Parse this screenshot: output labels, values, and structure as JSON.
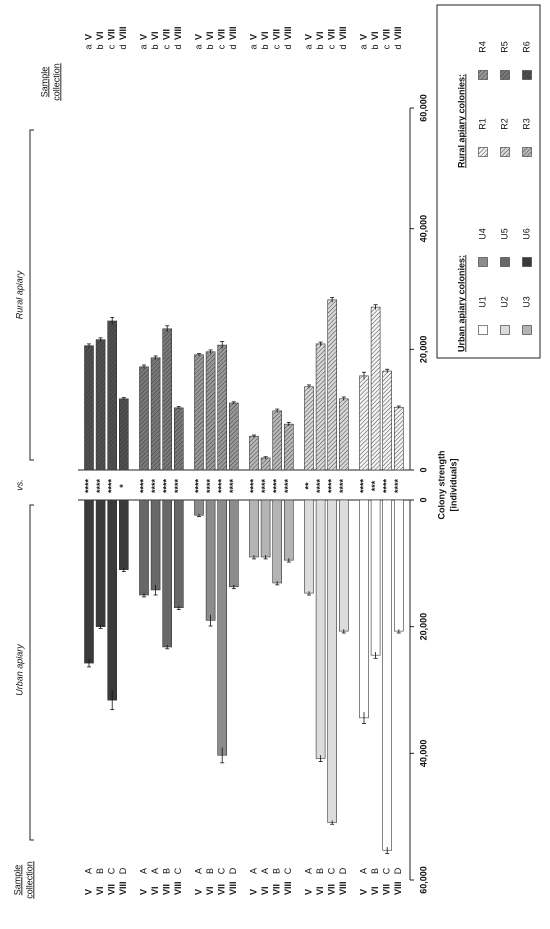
{
  "chart_data": {
    "type": "bar",
    "annotations": {
      "urban": "Urban apiary",
      "rural": "Rural apiary",
      "vs": "vs."
    },
    "sample_header": [
      "Sample",
      "collection"
    ],
    "xlabel": [
      "Colony strength",
      "[individuals]"
    ],
    "legend": {
      "urban_title": "Urban apiary colonies:",
      "rural_title": "Rural apiary colonies:"
    },
    "categories": [
      "V",
      "VI",
      "VII",
      "VIII"
    ],
    "ylim": [
      0,
      60000
    ],
    "yticks": [
      0,
      {
        "value": 20000,
        "label": "20,000"
      },
      {
        "value": 40000,
        "label": "40,000"
      },
      {
        "value": 60000,
        "label": "60,000"
      }
    ],
    "y2lim": [
      0,
      60000
    ],
    "y2ticks": [
      0,
      {
        "value": 20000,
        "label": "20,000"
      },
      {
        "value": 40000,
        "label": "40,000"
      },
      {
        "value": 60000,
        "label": "60,000"
      }
    ],
    "series": [
      {
        "name": "U1",
        "color": "#ffffff",
        "axis": "y",
        "letters": [
          "A",
          "B",
          "C",
          "D"
        ],
        "values": [
          34400,
          24500,
          55300,
          20700
        ],
        "errors": [
          900,
          500,
          500,
          300
        ],
        "significance": [
          "****",
          "***",
          "****",
          "****"
        ]
      },
      {
        "name": "U2",
        "color": "#dcdcdc",
        "axis": "y",
        "letters": [
          "A",
          "B",
          "C",
          "D"
        ],
        "values": [
          14700,
          40800,
          50900,
          20700
        ],
        "errors": [
          300,
          500,
          300,
          300
        ],
        "significance": [
          "**",
          "****",
          "****",
          "****"
        ]
      },
      {
        "name": "U3",
        "color": "#b4b4b4",
        "axis": "y",
        "letters": [
          "A",
          "A",
          "B",
          "C"
        ],
        "values": [
          9000,
          9000,
          13100,
          9500
        ],
        "errors": [
          300,
          300,
          300,
          300
        ],
        "significance": [
          "****",
          "****",
          "****",
          "****"
        ]
      },
      {
        "name": "U4",
        "color": "#8c8c8c",
        "axis": "y",
        "letters": [
          "A",
          "B",
          "C",
          "D"
        ],
        "values": [
          2400,
          19000,
          40300,
          13700
        ],
        "errors": [
          200,
          900,
          1200,
          300
        ],
        "significance": [
          "****",
          "****",
          "****",
          "****"
        ]
      },
      {
        "name": "U5",
        "color": "#686868",
        "axis": "y",
        "letters": [
          "A",
          "A",
          "B",
          "C"
        ],
        "values": [
          15000,
          14200,
          23200,
          17000
        ],
        "errors": [
          300,
          800,
          300,
          300
        ],
        "significance": [
          "****",
          "****",
          "****",
          "****"
        ]
      },
      {
        "name": "U6",
        "color": "#3a3a3a",
        "axis": "y",
        "letters": [
          "A",
          "B",
          "C",
          "D"
        ],
        "values": [
          25750,
          20000,
          31600,
          11000
        ],
        "errors": [
          600,
          300,
          1500,
          300
        ],
        "significance": [
          "****",
          "****",
          "****",
          "*"
        ]
      },
      {
        "name": "R1",
        "color": "#f4f4f4",
        "axis": "y2",
        "hatch": true,
        "letters": [
          "a",
          "b",
          "c",
          "d"
        ],
        "values": [
          15600,
          27000,
          16400,
          10400
        ],
        "errors": [
          600,
          400,
          300,
          200
        ]
      },
      {
        "name": "R2",
        "color": "#d8d8d8",
        "axis": "y2",
        "hatch": true,
        "letters": [
          "a",
          "b",
          "c",
          "d"
        ],
        "values": [
          13800,
          20900,
          28200,
          11800
        ],
        "errors": [
          300,
          300,
          400,
          300
        ]
      },
      {
        "name": "R3",
        "color": "#b8b8b8",
        "axis": "y2",
        "hatch": true,
        "letters": [
          "a",
          "b",
          "c",
          "d"
        ],
        "values": [
          5600,
          2000,
          9800,
          7600
        ],
        "errors": [
          200,
          200,
          300,
          300
        ]
      },
      {
        "name": "R4",
        "color": "#9a9a9a",
        "axis": "y2",
        "hatch": true,
        "letters": [
          "a",
          "b",
          "c",
          "d"
        ],
        "values": [
          19100,
          19600,
          20700,
          11100
        ],
        "errors": [
          200,
          300,
          600,
          200
        ]
      },
      {
        "name": "R5",
        "color": "#7a7a7a",
        "axis": "y2",
        "hatch": true,
        "letters": [
          "a",
          "b",
          "c",
          "d"
        ],
        "values": [
          17100,
          18600,
          23400,
          10300
        ],
        "errors": [
          300,
          300,
          500,
          200
        ]
      },
      {
        "name": "R6",
        "color": "#505050",
        "axis": "y2",
        "hatch": true,
        "letters": [
          "a",
          "b",
          "c",
          "d"
        ],
        "values": [
          20600,
          21600,
          24700,
          11800
        ],
        "errors": [
          300,
          300,
          600,
          200
        ]
      }
    ]
  }
}
